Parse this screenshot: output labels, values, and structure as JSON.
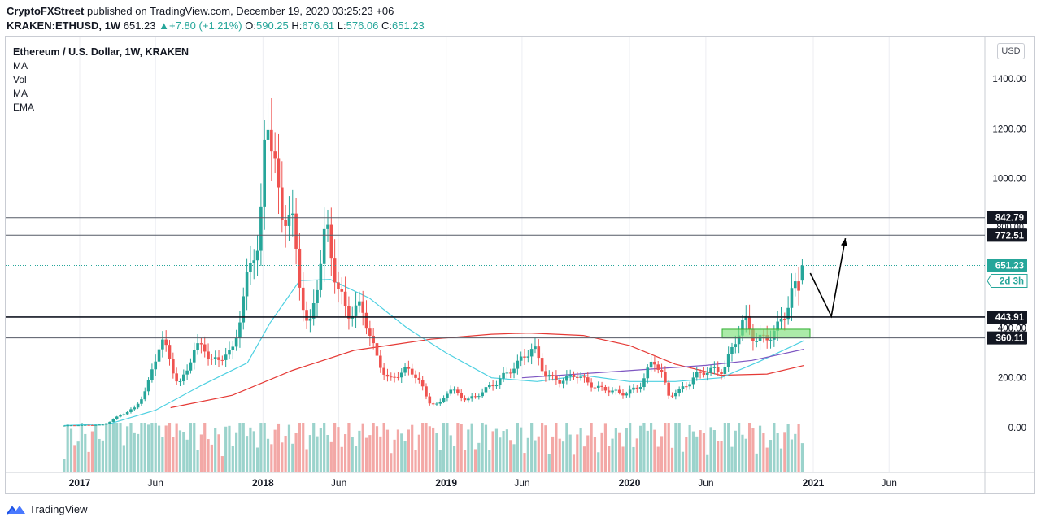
{
  "header": {
    "publisher": "CryptoFXStreet",
    "published_text": "published on TradingView.com, December 19, 2020 03:25:23 +06",
    "symbol": "KRAKEN:ETHUSD, 1W",
    "last": "651.23",
    "change": "+7.80 (+1.21%)",
    "o_label": "O:",
    "o_value": "590.25",
    "h_label": "H:",
    "h_value": "676.61",
    "l_label": "L:",
    "l_value": "576.06",
    "c_label": "C:",
    "c_value": "651.23"
  },
  "legend": {
    "title": "Ethereum / U.S. Dollar, 1W, KRAKEN",
    "indicators": [
      "MA",
      "Vol",
      "MA",
      "EMA"
    ]
  },
  "currency_button": "USD",
  "footer": {
    "brand": "TradingView"
  },
  "colors": {
    "up": "#26a69a",
    "up_fill": "#26a69a",
    "down": "#ef5350",
    "vol_up": "#9bd3cc",
    "vol_down": "#f3a8a6",
    "ma_fast": "#4dd0e1",
    "ma_slow": "#e53935",
    "ema": "#7e57c2",
    "zone_fill": "#7ee07a",
    "zone_border": "#2fae2f",
    "price_label_bg": "#131722",
    "last_bg": "#26a69a",
    "grid": "#eceef2"
  },
  "chart_data": {
    "type": "candlestick",
    "title": "Ethereum / U.S. Dollar, 1W, KRAKEN",
    "x_ticks": [
      "2017",
      "Jun",
      "2018",
      "Jun",
      "2019",
      "Jun",
      "2020",
      "Jun",
      "2021",
      "Jun"
    ],
    "y_ticks": [
      "1400.00",
      "1200.00",
      "1000.00",
      "400.00",
      "200.00",
      "0.00"
    ],
    "y_range": [
      -40,
      1540
    ],
    "horizontal_levels": [
      {
        "value": 842.79,
        "label": "842.79"
      },
      {
        "value": 772.51,
        "label": "772.51"
      },
      {
        "value": 443.91,
        "label": "443.91"
      },
      {
        "value": 360.11,
        "label": "360.11"
      }
    ],
    "obscured_labels": [
      "400.00",
      "800.00"
    ],
    "last_price": {
      "value": 651.23,
      "label": "651.23",
      "countdown": "2d 3h"
    },
    "support_zone": {
      "low": 360,
      "high": 395
    },
    "projection": [
      {
        "date": "2020-12-26",
        "price": 620
      },
      {
        "date": "2021-02-06",
        "price": 447
      },
      {
        "date": "2021-03-06",
        "price": 760
      }
    ],
    "price_path": [
      {
        "date": "2016-12-01",
        "price": 8
      },
      {
        "date": "2017-02-20",
        "price": 12
      },
      {
        "date": "2017-03-20",
        "price": 45
      },
      {
        "date": "2017-04-20",
        "price": 80
      },
      {
        "date": "2017-05-15",
        "price": 160
      },
      {
        "date": "2017-06-12",
        "price": 340
      },
      {
        "date": "2017-06-26",
        "price": 300
      },
      {
        "date": "2017-07-17",
        "price": 170
      },
      {
        "date": "2017-08-14",
        "price": 290
      },
      {
        "date": "2017-09-04",
        "price": 330
      },
      {
        "date": "2017-09-18",
        "price": 260
      },
      {
        "date": "2017-10-09",
        "price": 300
      },
      {
        "date": "2017-10-30",
        "price": 295
      },
      {
        "date": "2017-11-20",
        "price": 450
      },
      {
        "date": "2017-12-11",
        "price": 720
      },
      {
        "date": "2017-12-25",
        "price": 740
      },
      {
        "date": "2018-01-08",
        "price": 1340
      },
      {
        "date": "2018-01-22",
        "price": 1100
      },
      {
        "date": "2018-02-05",
        "price": 800
      },
      {
        "date": "2018-02-26",
        "price": 860
      },
      {
        "date": "2018-03-12",
        "price": 640
      },
      {
        "date": "2018-04-02",
        "price": 390
      },
      {
        "date": "2018-04-16",
        "price": 540
      },
      {
        "date": "2018-05-07",
        "price": 780
      },
      {
        "date": "2018-05-28",
        "price": 580
      },
      {
        "date": "2018-06-18",
        "price": 480
      },
      {
        "date": "2018-07-16",
        "price": 470
      },
      {
        "date": "2018-08-13",
        "price": 290
      },
      {
        "date": "2018-09-10",
        "price": 195
      },
      {
        "date": "2018-10-08",
        "price": 225
      },
      {
        "date": "2018-11-05",
        "price": 205
      },
      {
        "date": "2018-11-26",
        "price": 110
      },
      {
        "date": "2018-12-17",
        "price": 90
      },
      {
        "date": "2019-01-07",
        "price": 150
      },
      {
        "date": "2019-02-11",
        "price": 115
      },
      {
        "date": "2019-03-11",
        "price": 140
      },
      {
        "date": "2019-04-08",
        "price": 170
      },
      {
        "date": "2019-05-13",
        "price": 250
      },
      {
        "date": "2019-06-24",
        "price": 310
      },
      {
        "date": "2019-07-15",
        "price": 220
      },
      {
        "date": "2019-08-19",
        "price": 190
      },
      {
        "date": "2019-09-16",
        "price": 205
      },
      {
        "date": "2019-10-14",
        "price": 180
      },
      {
        "date": "2019-11-18",
        "price": 150
      },
      {
        "date": "2019-12-16",
        "price": 130
      },
      {
        "date": "2020-01-20",
        "price": 170
      },
      {
        "date": "2020-02-17",
        "price": 265
      },
      {
        "date": "2020-03-09",
        "price": 200
      },
      {
        "date": "2020-03-16",
        "price": 125
      },
      {
        "date": "2020-04-13",
        "price": 160
      },
      {
        "date": "2020-05-11",
        "price": 200
      },
      {
        "date": "2020-06-15",
        "price": 235
      },
      {
        "date": "2020-07-06",
        "price": 240
      },
      {
        "date": "2020-07-27",
        "price": 330
      },
      {
        "date": "2020-08-17",
        "price": 420
      },
      {
        "date": "2020-09-07",
        "price": 360
      },
      {
        "date": "2020-09-28",
        "price": 375
      },
      {
        "date": "2020-10-19",
        "price": 380
      },
      {
        "date": "2020-11-09",
        "price": 460
      },
      {
        "date": "2020-11-23",
        "price": 560
      },
      {
        "date": "2020-12-07",
        "price": 590
      },
      {
        "date": "2020-12-14",
        "price": 651
      }
    ],
    "ma_fast": [
      {
        "date": "2016-12-01",
        "price": 8
      },
      {
        "date": "2017-03-01",
        "price": 15
      },
      {
        "date": "2017-06-01",
        "price": 70
      },
      {
        "date": "2017-09-01",
        "price": 170
      },
      {
        "date": "2017-12-01",
        "price": 260
      },
      {
        "date": "2018-01-15",
        "price": 420
      },
      {
        "date": "2018-03-15",
        "price": 590
      },
      {
        "date": "2018-05-15",
        "price": 595
      },
      {
        "date": "2018-08-01",
        "price": 520
      },
      {
        "date": "2018-10-15",
        "price": 400
      },
      {
        "date": "2019-01-01",
        "price": 300
      },
      {
        "date": "2019-04-01",
        "price": 200
      },
      {
        "date": "2019-07-01",
        "price": 185
      },
      {
        "date": "2019-10-01",
        "price": 210
      },
      {
        "date": "2020-01-01",
        "price": 185
      },
      {
        "date": "2020-04-01",
        "price": 185
      },
      {
        "date": "2020-07-01",
        "price": 200
      },
      {
        "date": "2020-09-15",
        "price": 265
      },
      {
        "date": "2020-12-14",
        "price": 350
      }
    ],
    "ma_slow": [
      {
        "date": "2017-07-01",
        "price": 80
      },
      {
        "date": "2017-11-01",
        "price": 130
      },
      {
        "date": "2018-03-01",
        "price": 230
      },
      {
        "date": "2018-07-01",
        "price": 310
      },
      {
        "date": "2018-12-01",
        "price": 355
      },
      {
        "date": "2019-04-01",
        "price": 375
      },
      {
        "date": "2019-06-15",
        "price": 380
      },
      {
        "date": "2019-10-01",
        "price": 370
      },
      {
        "date": "2020-01-01",
        "price": 330
      },
      {
        "date": "2020-04-01",
        "price": 255
      },
      {
        "date": "2020-07-01",
        "price": 210
      },
      {
        "date": "2020-10-01",
        "price": 215
      },
      {
        "date": "2020-12-14",
        "price": 250
      }
    ],
    "ema": [
      {
        "date": "2019-06-01",
        "price": 200
      },
      {
        "date": "2019-12-01",
        "price": 225
      },
      {
        "date": "2020-06-01",
        "price": 250
      },
      {
        "date": "2020-09-01",
        "price": 270
      },
      {
        "date": "2020-12-14",
        "price": 315
      }
    ]
  }
}
